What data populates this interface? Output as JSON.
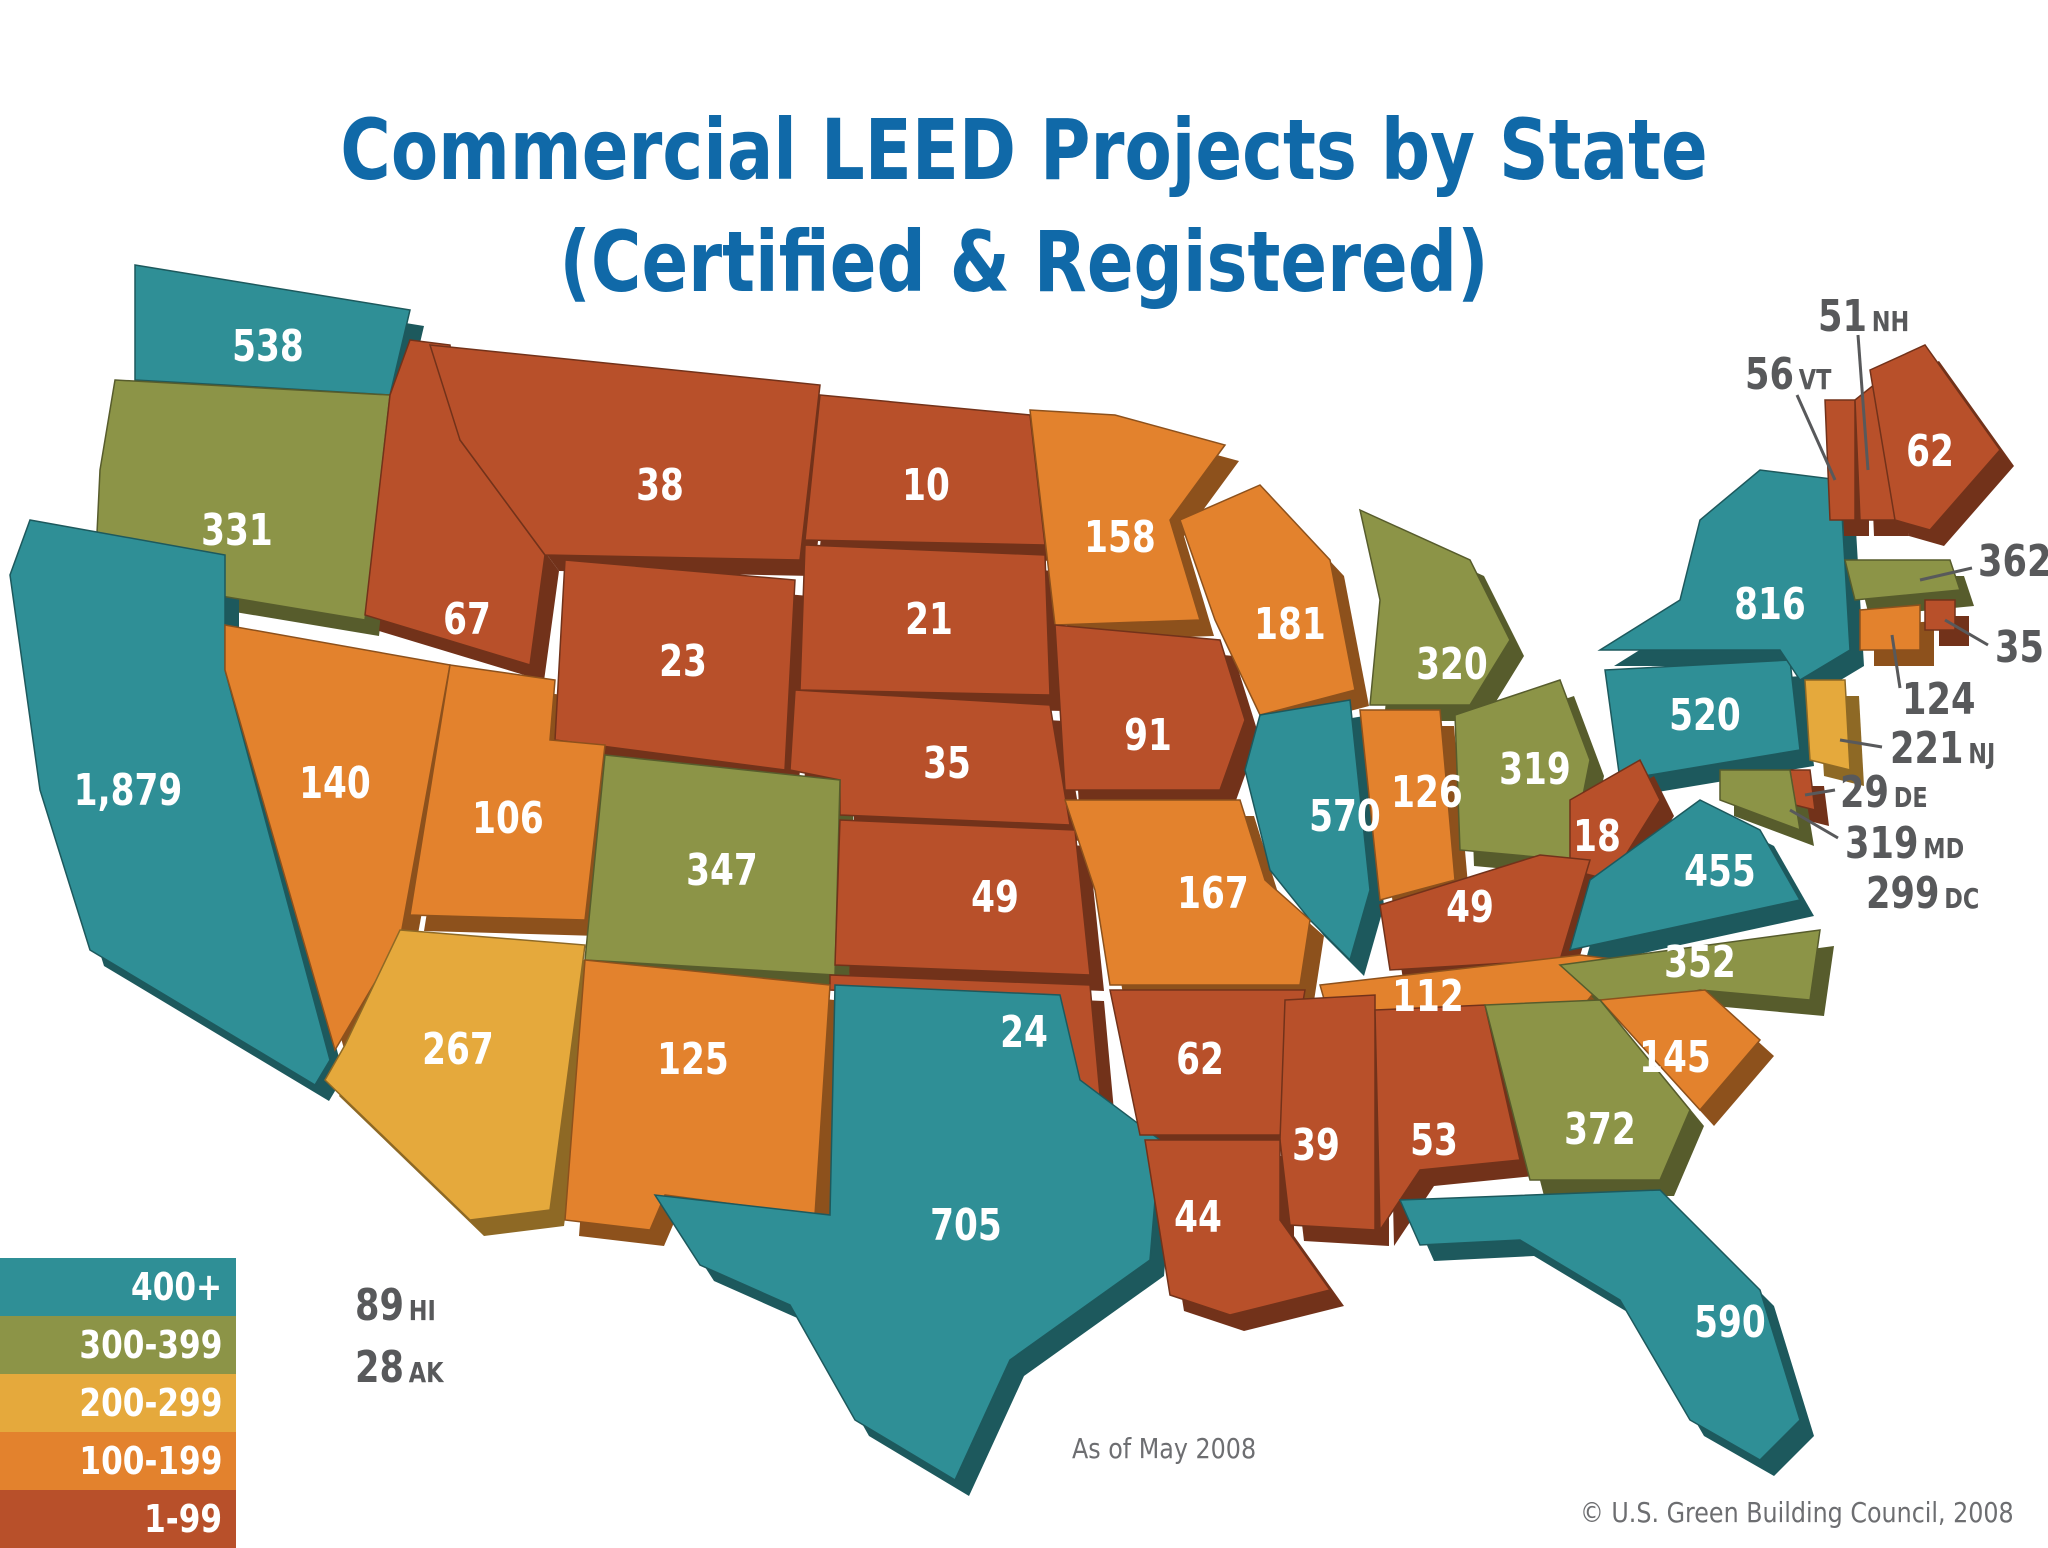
{
  "title_line1": "Commercial LEED Projects by State",
  "title_line2": "(Certified & Registered)",
  "colors": {
    "400+": "#2f8f96",
    "300-399": "#8c9447",
    "200-299": "#e5a93c",
    "100-199": "#e3822d",
    "1-99": "#b8502a"
  },
  "legend": [
    {
      "label": "400+",
      "color": "#2f8f96"
    },
    {
      "label": "300-399",
      "color": "#8c9447"
    },
    {
      "label": "200-299",
      "color": "#e5a93c"
    },
    {
      "label": "100-199",
      "color": "#e3822d"
    },
    {
      "label": "1-99",
      "color": "#b8502a"
    }
  ],
  "states": {
    "WA": "538",
    "OR": "331",
    "CA": "1,879",
    "NV": "140",
    "ID": "67",
    "MT": "38",
    "WY": "23",
    "UT": "106",
    "AZ": "267",
    "CO": "347",
    "NM": "125",
    "TX": "705",
    "ND": "10",
    "SD": "21",
    "NE": "35",
    "KS": "49",
    "OK": "24",
    "MN": "158",
    "IA": "91",
    "MO": "167",
    "AR": "62",
    "LA": "44",
    "WI": "181",
    "IL": "570",
    "MS": "39",
    "MI": "320",
    "IN": "126",
    "KY": "49",
    "TN": "112",
    "AL": "53",
    "OH": "319",
    "GA": "372",
    "FL": "590",
    "SC": "145",
    "NC": "352",
    "VA": "455",
    "WV": "18",
    "PA": "520",
    "NY": "816",
    "ME": "62"
  },
  "external_labels": {
    "NH": {
      "value": "51",
      "abbr": "NH"
    },
    "VT": {
      "value": "56",
      "abbr": "VT"
    },
    "MA": {
      "value": "362",
      "abbr": ""
    },
    "RI": {
      "value": "35",
      "abbr": ""
    },
    "CT": {
      "value": "124",
      "abbr": ""
    },
    "NJ": {
      "value": "221",
      "abbr": "NJ"
    },
    "DE": {
      "value": "29",
      "abbr": "DE"
    },
    "MD": {
      "value": "319",
      "abbr": "MD"
    },
    "DC": {
      "value": "299",
      "abbr": "DC"
    },
    "HI": {
      "value": "89",
      "abbr": "HI"
    },
    "AK": {
      "value": "28",
      "abbr": "AK"
    }
  },
  "note": "As of May 2008",
  "copyright": "© U.S. Green Building Council, 2008"
}
